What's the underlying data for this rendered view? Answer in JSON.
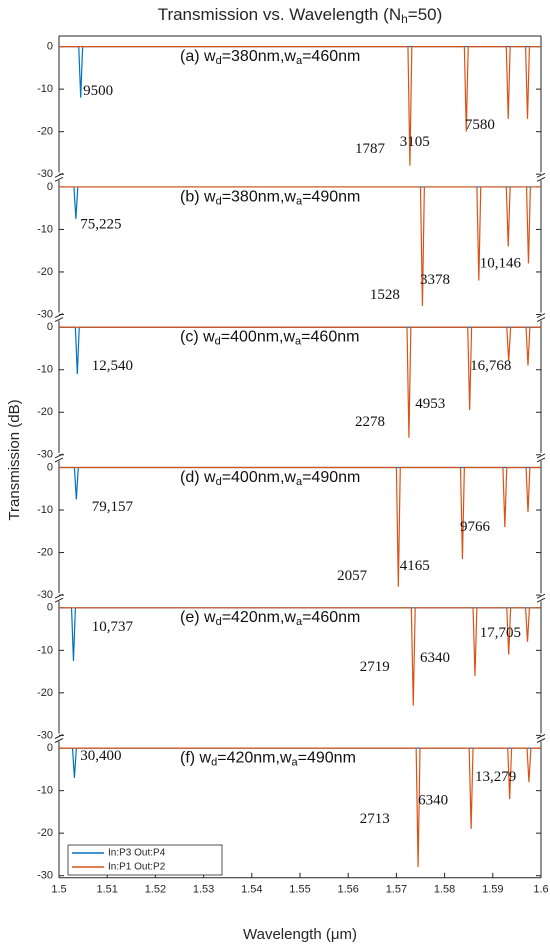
{
  "chart_data": {
    "type": "line",
    "title": [
      "Transmission vs. Wavelength (N",
      "h",
      "=50)"
    ],
    "xlabel": "Wavelength (μm)",
    "ylabel": "Transmission (dB)",
    "xlim": [
      1.5,
      1.6
    ],
    "xticks": [
      1.5,
      1.51,
      1.52,
      1.53,
      1.54,
      1.55,
      1.56,
      1.57,
      1.58,
      1.59,
      1.6
    ],
    "ylim": [
      -30.5,
      2.5
    ],
    "yticks": [
      0,
      -10,
      -20,
      -30
    ],
    "series": [
      {
        "name": "In:P3 Out:P4",
        "color": "#0072bd"
      },
      {
        "name": "In:P1 Out:P2",
        "color": "#d95319"
      }
    ],
    "panels": [
      {
        "label": [
          "(a) w",
          "d",
          "=380nm,w",
          "a",
          "=460nm"
        ],
        "lines": [
          {
            "x": [
              1.5,
              1.5041,
              1.5045,
              1.5049,
              1.6
            ],
            "values": [
              0,
              0,
              -12,
              0,
              0
            ]
          },
          {
            "x": [
              1.5,
              1.5724,
              1.5728,
              1.5732,
              1.5841,
              1.5845,
              1.5849,
              1.5928,
              1.5932,
              1.5936,
              1.5968,
              1.5972,
              1.5976,
              1.6
            ],
            "values": [
              0,
              0,
              -28,
              0,
              0,
              -20,
              0,
              0,
              -17,
              0,
              0,
              -17,
              0,
              0
            ]
          }
        ],
        "annotations": [
          {
            "text": "9500",
            "x": 1.505,
            "y": -10.6
          },
          {
            "text": "1787",
            "x": 1.5614,
            "y": -24.2
          },
          {
            "text": "3105",
            "x": 1.5707,
            "y": -22.6
          },
          {
            "text": "7580",
            "x": 1.5842,
            "y": -18.6
          }
        ]
      },
      {
        "label": [
          "(b) w",
          "d",
          "=380nm,w",
          "a",
          "=490nm"
        ],
        "lines": [
          {
            "x": [
              1.5,
              1.5031,
              1.5035,
              1.5039,
              1.6
            ],
            "values": [
              0,
              0,
              -7.5,
              0,
              0
            ]
          },
          {
            "x": [
              1.5,
              1.575,
              1.5754,
              1.5758,
              1.5867,
              1.5871,
              1.5875,
              1.5928,
              1.5932,
              1.5936,
              1.597,
              1.5974,
              1.5978,
              1.6
            ],
            "values": [
              0,
              0,
              -28,
              0,
              0,
              -22,
              0,
              0,
              -14,
              0,
              0,
              -18,
              0,
              0
            ]
          }
        ],
        "annotations": [
          {
            "text": "75,225",
            "x": 1.5044,
            "y": -9
          },
          {
            "text": "1528",
            "x": 1.5645,
            "y": -25.5
          },
          {
            "text": "3378",
            "x": 1.5749,
            "y": -22
          },
          {
            "text": "10,146",
            "x": 1.5873,
            "y": -18.2
          }
        ]
      },
      {
        "label": [
          "(c) w",
          "d",
          "=400nm,w",
          "a",
          "=460nm"
        ],
        "lines": [
          {
            "x": [
              1.5,
              1.5034,
              1.5038,
              1.5042,
              1.6
            ],
            "values": [
              0,
              0,
              -11,
              0,
              0
            ]
          },
          {
            "x": [
              1.5,
              1.5722,
              1.5726,
              1.573,
              1.5848,
              1.5852,
              1.5856,
              1.5929,
              1.5933,
              1.5937,
              1.5969,
              1.5973,
              1.5977,
              1.6
            ],
            "values": [
              0,
              0,
              -26,
              0,
              0,
              -19.5,
              0,
              0,
              -8,
              0,
              0,
              -9,
              0,
              0
            ]
          }
        ],
        "annotations": [
          {
            "text": "12,540",
            "x": 1.5068,
            "y": -9.3
          },
          {
            "text": "2278",
            "x": 1.5614,
            "y": -22.4
          },
          {
            "text": "4953",
            "x": 1.5739,
            "y": -18.2
          },
          {
            "text": "16,768",
            "x": 1.5853,
            "y": -9.3
          }
        ]
      },
      {
        "label": [
          "(d) w",
          "d",
          "=400nm,w",
          "a",
          "=490nm"
        ],
        "lines": [
          {
            "x": [
              1.5,
              1.5032,
              1.5036,
              1.504,
              1.6
            ],
            "values": [
              0,
              0,
              -7.5,
              0,
              0
            ]
          },
          {
            "x": [
              1.5,
              1.57,
              1.5704,
              1.5708,
              1.5833,
              1.5837,
              1.5841,
              1.5921,
              1.5925,
              1.5929,
              1.5969,
              1.5973,
              1.5977,
              1.6
            ],
            "values": [
              0,
              0,
              -28,
              0,
              0,
              -21.5,
              0,
              0,
              -14,
              0,
              0,
              -10.5,
              0,
              0
            ]
          }
        ],
        "annotations": [
          {
            "text": "79,157",
            "x": 1.5068,
            "y": -9.4
          },
          {
            "text": "2057",
            "x": 1.5577,
            "y": -25.6
          },
          {
            "text": "4165",
            "x": 1.5707,
            "y": -23.3
          },
          {
            "text": "9766",
            "x": 1.5832,
            "y": -14.1
          }
        ]
      },
      {
        "label": [
          "(e) w",
          "d",
          "=420nm,w",
          "a",
          "=460nm"
        ],
        "lines": [
          {
            "x": [
              1.5,
              1.5026,
              1.503,
              1.5034,
              1.6
            ],
            "values": [
              0,
              0,
              -12.5,
              0,
              0
            ]
          },
          {
            "x": [
              1.5,
              1.5731,
              1.5735,
              1.5739,
              1.5859,
              1.5863,
              1.5867,
              1.5929,
              1.5933,
              1.5937,
              1.5968,
              1.5972,
              1.5976,
              1.6
            ],
            "values": [
              0,
              0,
              -23,
              0,
              0,
              -16,
              0,
              0,
              -11,
              0,
              0,
              -8,
              0,
              0
            ]
          }
        ],
        "annotations": [
          {
            "text": "10,737",
            "x": 1.5068,
            "y": -4.7
          },
          {
            "text": "2719",
            "x": 1.5624,
            "y": -14
          },
          {
            "text": "6340",
            "x": 1.5749,
            "y": -11.9
          },
          {
            "text": "17,705",
            "x": 1.5873,
            "y": -6
          }
        ]
      },
      {
        "label": [
          "(f) w",
          "d",
          "=420nm,w",
          "a",
          "=490nm"
        ],
        "lines": [
          {
            "x": [
              1.5,
              1.5028,
              1.5032,
              1.5036,
              1.6
            ],
            "values": [
              0,
              0,
              -7,
              0,
              0
            ]
          },
          {
            "x": [
              1.5,
              1.5741,
              1.5745,
              1.5749,
              1.5851,
              1.5855,
              1.5859,
              1.5931,
              1.5935,
              1.5939,
              1.5971,
              1.5975,
              1.5979,
              1.6
            ],
            "values": [
              0,
              0,
              -28,
              0,
              0,
              -19,
              0,
              0,
              -12,
              0,
              0,
              -8,
              0,
              0
            ]
          }
        ],
        "annotations": [
          {
            "text": "30,400",
            "x": 1.5044,
            "y": -2
          },
          {
            "text": "2713",
            "x": 1.5624,
            "y": -16.8
          },
          {
            "text": "6340",
            "x": 1.5745,
            "y": -12.5
          },
          {
            "text": "13,279",
            "x": 1.5863,
            "y": -6.9
          }
        ]
      }
    ]
  }
}
